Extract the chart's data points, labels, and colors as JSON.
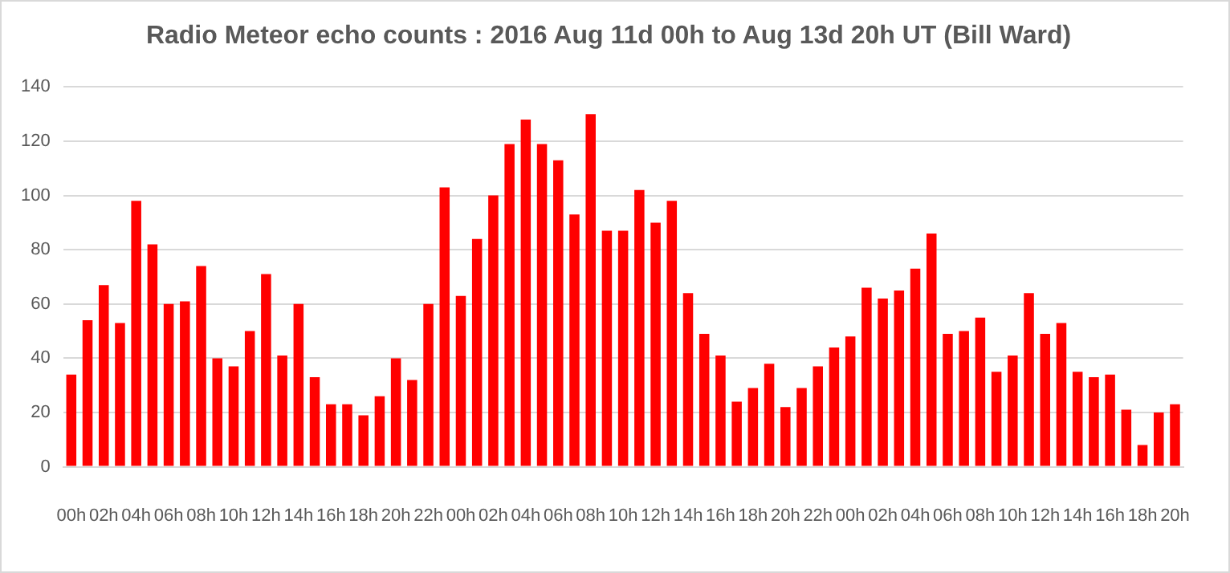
{
  "chart_data": {
    "type": "bar",
    "title": "Radio Meteor echo counts : 2016 Aug 11d 00h to Aug 13d 20h UT (Bill Ward)",
    "categories": [
      "00h",
      null,
      "02h",
      null,
      "04h",
      null,
      "06h",
      null,
      "08h",
      null,
      "10h",
      null,
      "12h",
      null,
      "14h",
      null,
      "16h",
      null,
      "18h",
      null,
      "20h",
      null,
      "22h",
      null,
      "00h",
      null,
      "02h",
      null,
      "04h",
      null,
      "06h",
      null,
      "08h",
      null,
      "10h",
      null,
      "12h",
      null,
      "14h",
      null,
      "16h",
      null,
      "18h",
      null,
      "20h",
      null,
      "22h",
      null,
      "00h",
      null,
      "02h",
      null,
      "04h",
      null,
      "06h",
      null,
      "08h",
      null,
      "10h",
      null,
      "12h",
      null,
      "14h",
      null,
      "16h",
      null,
      "18h",
      null,
      "20h"
    ],
    "values": [
      34,
      54,
      67,
      53,
      98,
      82,
      60,
      61,
      74,
      40,
      37,
      50,
      71,
      41,
      60,
      33,
      23,
      23,
      19,
      26,
      40,
      32,
      60,
      103,
      63,
      84,
      100,
      119,
      128,
      119,
      113,
      93,
      130,
      87,
      87,
      102,
      90,
      98,
      64,
      49,
      41,
      24,
      29,
      38,
      22,
      29,
      37,
      44,
      48,
      66,
      62,
      65,
      73,
      86,
      49,
      50,
      55,
      35,
      41,
      64,
      49,
      53,
      35,
      33,
      34,
      21,
      8,
      20,
      23
    ],
    "color": "#ff0000",
    "ylim": [
      0,
      140
    ],
    "yticks": [
      0,
      20,
      40,
      60,
      80,
      100,
      120,
      140
    ],
    "grid": "y"
  }
}
